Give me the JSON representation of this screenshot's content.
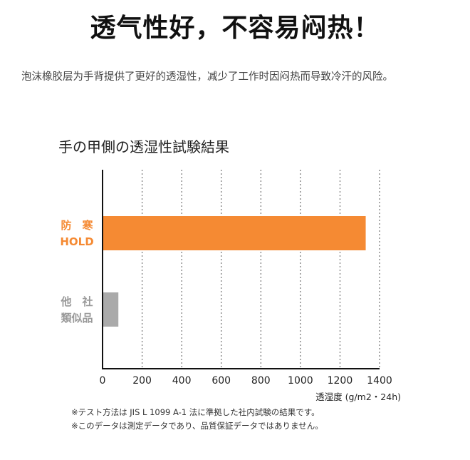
{
  "headline": "透气性好，不容易闷热！",
  "description": "泡沫橡胶层为手背提供了更好的透湿性，减少了工作时因闷热而导致冷汗的风险。",
  "chart_data": {
    "type": "bar",
    "orientation": "horizontal",
    "title": "手の甲側の透湿性試験結果",
    "xlabel": "透湿度 (g/m2・24h)",
    "ylabel": "",
    "xlim": [
      0,
      1400
    ],
    "x_ticks": [
      "0",
      "200",
      "400",
      "600",
      "800",
      "1000",
      "1200",
      "1400"
    ],
    "grid": "vertical dashed",
    "categories": [
      {
        "line1": "防　寒",
        "line2": "HOLD",
        "value": 1330,
        "color": "#f58a33",
        "label_color": "#f58a33"
      },
      {
        "line1": "他　社",
        "line2": "類似品",
        "value": 80,
        "color": "#aaaaaa",
        "label_color": "#999999"
      }
    ]
  },
  "notes": [
    "※テスト方法は JIS L 1099 A-1 法に準拠した社内試験の結果です。",
    "※このデータは測定データであり、品質保証データではありません。"
  ]
}
